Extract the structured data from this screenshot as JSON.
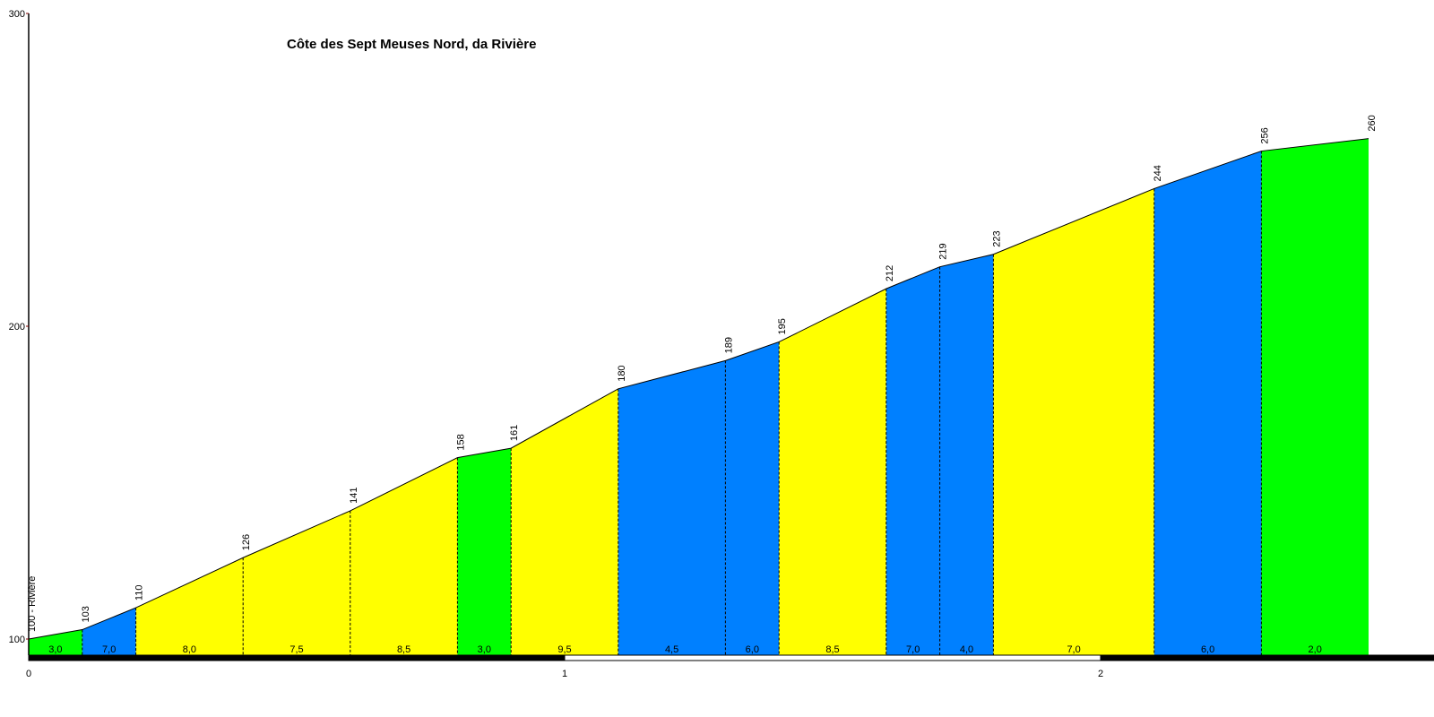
{
  "chart_data": {
    "type": "area",
    "title": "Côte des Sept Meuses Nord, da Rivière",
    "start_label": "100 - Rivière",
    "ylim": [
      100,
      300
    ],
    "y_ticks": [
      "100",
      "200",
      "300"
    ],
    "xlim": [
      0,
      2.6
    ],
    "x_ticks": [
      "0",
      "1",
      "2"
    ],
    "colors": {
      "green": "#00ff00",
      "blue": "#0080ff",
      "yellow": "#ffff00",
      "axis": "#000000",
      "tick_mark": "#800000"
    },
    "points": [
      {
        "km": 0.0,
        "alt": 100,
        "label": "100 - Rivière"
      },
      {
        "km": 0.1,
        "alt": 103,
        "label": "103"
      },
      {
        "km": 0.2,
        "alt": 110,
        "label": "110"
      },
      {
        "km": 0.4,
        "alt": 126,
        "label": "126"
      },
      {
        "km": 0.6,
        "alt": 141,
        "label": "141"
      },
      {
        "km": 0.8,
        "alt": 158,
        "label": "158"
      },
      {
        "km": 0.9,
        "alt": 161,
        "label": "161"
      },
      {
        "km": 1.1,
        "alt": 180,
        "label": "180"
      },
      {
        "km": 1.3,
        "alt": 189,
        "label": "189"
      },
      {
        "km": 1.4,
        "alt": 195,
        "label": "195"
      },
      {
        "km": 1.6,
        "alt": 212,
        "label": "212"
      },
      {
        "km": 1.7,
        "alt": 219,
        "label": "219"
      },
      {
        "km": 1.8,
        "alt": 223,
        "label": "223"
      },
      {
        "km": 2.1,
        "alt": 244,
        "label": "244"
      },
      {
        "km": 2.3,
        "alt": 256,
        "label": "256"
      },
      {
        "km": 2.5,
        "alt": 260,
        "label": "260"
      }
    ],
    "segments": [
      {
        "grade": "3,0",
        "color": "green"
      },
      {
        "grade": "7,0",
        "color": "blue"
      },
      {
        "grade": "8,0",
        "color": "yellow"
      },
      {
        "grade": "7,5",
        "color": "yellow"
      },
      {
        "grade": "8,5",
        "color": "yellow"
      },
      {
        "grade": "3,0",
        "color": "green"
      },
      {
        "grade": "9,5",
        "color": "yellow"
      },
      {
        "grade": "4,5",
        "color": "blue"
      },
      {
        "grade": "6,0",
        "color": "blue"
      },
      {
        "grade": "8,5",
        "color": "yellow"
      },
      {
        "grade": "7,0",
        "color": "blue"
      },
      {
        "grade": "4,0",
        "color": "blue"
      },
      {
        "grade": "7,0",
        "color": "yellow"
      },
      {
        "grade": "6,0",
        "color": "blue"
      },
      {
        "grade": "2,0",
        "color": "green"
      }
    ],
    "scale_bar_km": [
      {
        "from": 0,
        "to": 1,
        "fill": "black"
      },
      {
        "from": 1,
        "to": 2,
        "fill": "white"
      },
      {
        "from": 2,
        "to": 2.7,
        "fill": "black"
      }
    ]
  }
}
